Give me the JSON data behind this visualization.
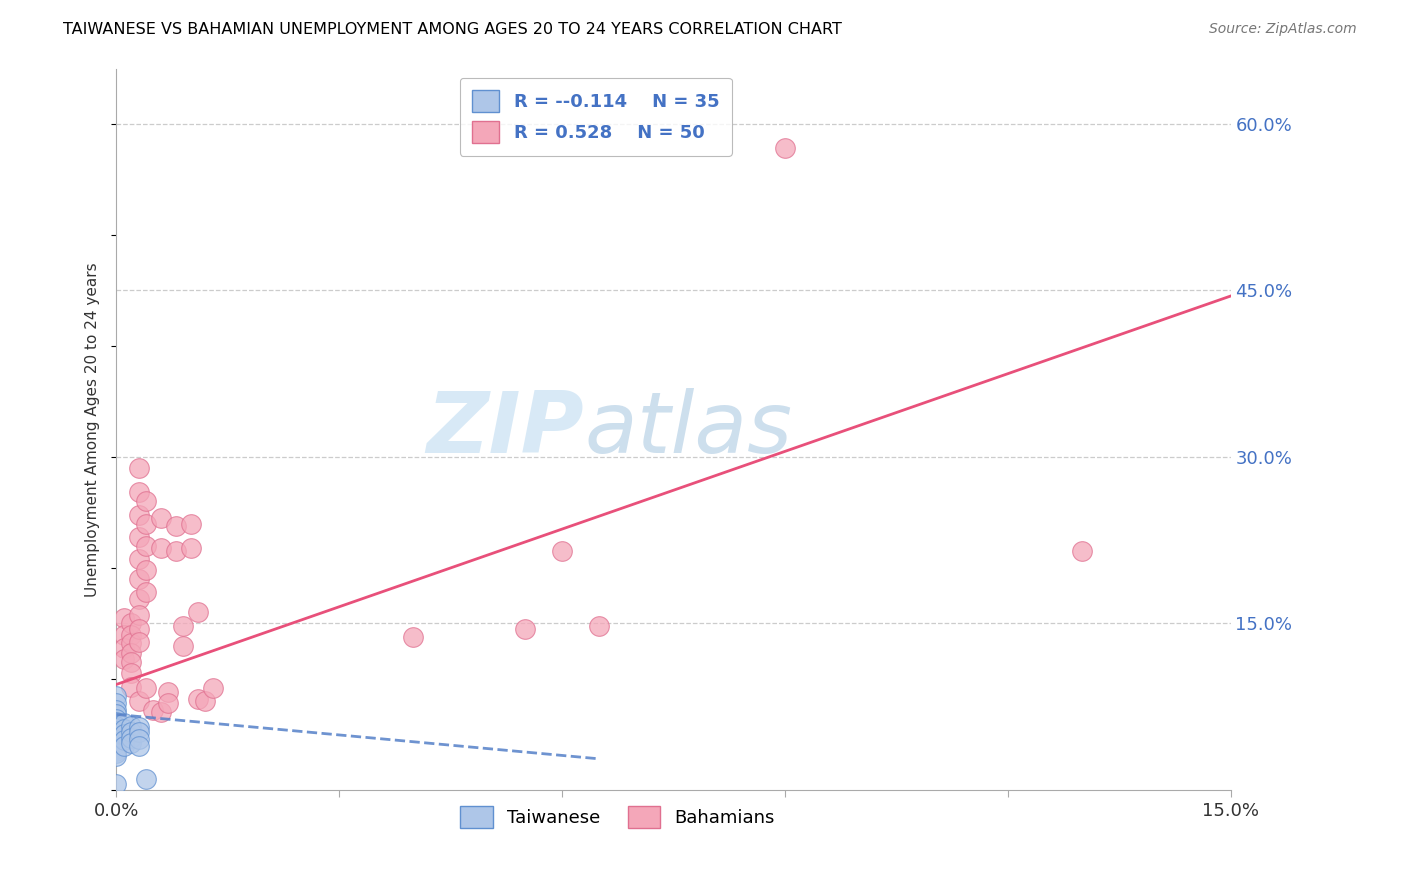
{
  "title": "TAIWANESE VS BAHAMIAN UNEMPLOYMENT AMONG AGES 20 TO 24 YEARS CORRELATION CHART",
  "source": "Source: ZipAtlas.com",
  "ylabel_label": "Unemployment Among Ages 20 to 24 years",
  "xmin": 0.0,
  "xmax": 0.15,
  "ymin": 0.0,
  "ymax": 0.65,
  "xticks": [
    0.0,
    0.03,
    0.06,
    0.09,
    0.12,
    0.15
  ],
  "xtick_labels": [
    "0.0%",
    "",
    "",
    "",
    "",
    "15.0%"
  ],
  "ytick_labels_right": [
    "60.0%",
    "45.0%",
    "30.0%",
    "15.0%"
  ],
  "ytick_vals_right": [
    0.6,
    0.45,
    0.3,
    0.15
  ],
  "legend_r1": "-0.114",
  "legend_n1": "35",
  "legend_r2": "0.528",
  "legend_n2": "50",
  "watermark_zip": "ZIP",
  "watermark_atlas": "atlas",
  "tw_color": "#aec6e8",
  "bah_color": "#f4a7b9",
  "tw_edge_color": "#6090d0",
  "bah_edge_color": "#e07090",
  "tw_line_color": "#5580c8",
  "bah_line_color": "#e8507a",
  "tw_scatter": [
    [
      0.0,
      0.085
    ],
    [
      0.0,
      0.078
    ],
    [
      0.0,
      0.072
    ],
    [
      0.0,
      0.068
    ],
    [
      0.0,
      0.064
    ],
    [
      0.0,
      0.061
    ],
    [
      0.0,
      0.058
    ],
    [
      0.0,
      0.056
    ],
    [
      0.0,
      0.053
    ],
    [
      0.0,
      0.051
    ],
    [
      0.0,
      0.049
    ],
    [
      0.0,
      0.047
    ],
    [
      0.0,
      0.045
    ],
    [
      0.0,
      0.043
    ],
    [
      0.0,
      0.041
    ],
    [
      0.0,
      0.039
    ],
    [
      0.0,
      0.037
    ],
    [
      0.0,
      0.035
    ],
    [
      0.0,
      0.033
    ],
    [
      0.0,
      0.031
    ],
    [
      0.001,
      0.06
    ],
    [
      0.001,
      0.055
    ],
    [
      0.001,
      0.05
    ],
    [
      0.001,
      0.045
    ],
    [
      0.001,
      0.04
    ],
    [
      0.002,
      0.058
    ],
    [
      0.002,
      0.052
    ],
    [
      0.002,
      0.047
    ],
    [
      0.002,
      0.042
    ],
    [
      0.003,
      0.057
    ],
    [
      0.003,
      0.052
    ],
    [
      0.003,
      0.046
    ],
    [
      0.003,
      0.04
    ],
    [
      0.004,
      0.01
    ],
    [
      0.0,
      0.005
    ]
  ],
  "bah_scatter": [
    [
      0.001,
      0.155
    ],
    [
      0.001,
      0.14
    ],
    [
      0.001,
      0.128
    ],
    [
      0.001,
      0.118
    ],
    [
      0.002,
      0.15
    ],
    [
      0.002,
      0.14
    ],
    [
      0.002,
      0.132
    ],
    [
      0.002,
      0.123
    ],
    [
      0.002,
      0.115
    ],
    [
      0.002,
      0.105
    ],
    [
      0.002,
      0.093
    ],
    [
      0.003,
      0.29
    ],
    [
      0.003,
      0.268
    ],
    [
      0.003,
      0.248
    ],
    [
      0.003,
      0.228
    ],
    [
      0.003,
      0.208
    ],
    [
      0.003,
      0.19
    ],
    [
      0.003,
      0.172
    ],
    [
      0.003,
      0.158
    ],
    [
      0.003,
      0.145
    ],
    [
      0.003,
      0.133
    ],
    [
      0.003,
      0.08
    ],
    [
      0.004,
      0.26
    ],
    [
      0.004,
      0.24
    ],
    [
      0.004,
      0.22
    ],
    [
      0.004,
      0.198
    ],
    [
      0.004,
      0.178
    ],
    [
      0.004,
      0.092
    ],
    [
      0.005,
      0.072
    ],
    [
      0.006,
      0.245
    ],
    [
      0.006,
      0.218
    ],
    [
      0.006,
      0.07
    ],
    [
      0.007,
      0.088
    ],
    [
      0.007,
      0.078
    ],
    [
      0.008,
      0.238
    ],
    [
      0.008,
      0.215
    ],
    [
      0.009,
      0.148
    ],
    [
      0.009,
      0.13
    ],
    [
      0.01,
      0.24
    ],
    [
      0.01,
      0.218
    ],
    [
      0.011,
      0.16
    ],
    [
      0.011,
      0.082
    ],
    [
      0.012,
      0.08
    ],
    [
      0.013,
      0.092
    ],
    [
      0.04,
      0.138
    ],
    [
      0.055,
      0.145
    ],
    [
      0.06,
      0.215
    ],
    [
      0.065,
      0.148
    ],
    [
      0.09,
      0.578
    ],
    [
      0.13,
      0.215
    ]
  ],
  "tw_trend_x": [
    0.0,
    0.065
  ],
  "tw_trend_y": [
    0.068,
    0.028
  ],
  "bah_trend_x": [
    0.0,
    0.15
  ],
  "bah_trend_y": [
    0.095,
    0.445
  ]
}
